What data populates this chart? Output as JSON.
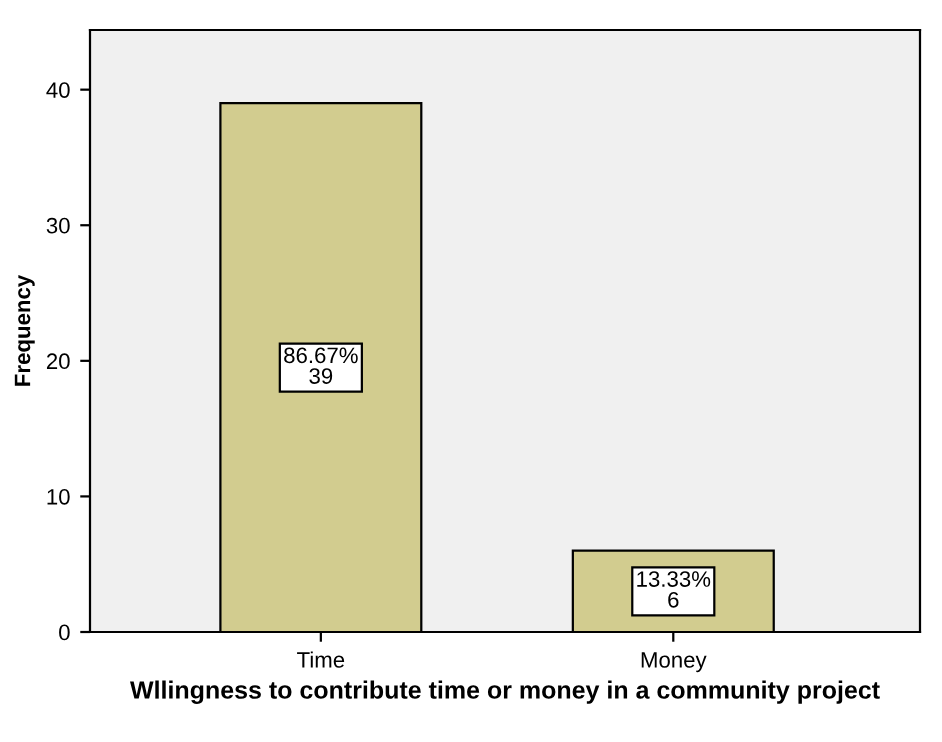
{
  "chart_data": {
    "type": "bar",
    "xlabel": "Wllingness to contribute time or money in a community project",
    "ylabel": "Frequency",
    "categories": [
      "Time",
      "Money"
    ],
    "values": [
      39,
      6
    ],
    "value_labels": [
      "86.67%\n39",
      "13.33%\n6"
    ],
    "color": "#d2cc8f",
    "ylim": [
      0,
      44.4
    ],
    "yticks": [
      0,
      10,
      20,
      30,
      40
    ],
    "grid": false,
    "legend": false
  }
}
